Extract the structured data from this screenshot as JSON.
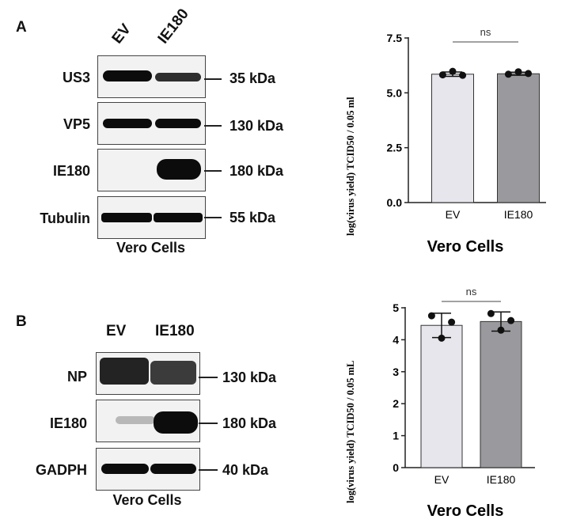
{
  "panel_a": {
    "letter": "A",
    "lanes": [
      "EV",
      "IE180"
    ],
    "blots": [
      {
        "protein": "US3",
        "size": "35 kDa"
      },
      {
        "protein": "VP5",
        "size": "130 kDa"
      },
      {
        "protein": "IE180",
        "size": "180 kDa"
      },
      {
        "protein": "Tubulin",
        "size": "55 kDa"
      }
    ],
    "caption": "Vero Cells"
  },
  "panel_b": {
    "letter": "B",
    "lanes": [
      "EV",
      "IE180"
    ],
    "blots": [
      {
        "protein": "NP",
        "size": "130 kDa"
      },
      {
        "protein": "IE180",
        "size": "180 kDa"
      },
      {
        "protein": "GADPH",
        "size": "40 kDa"
      }
    ],
    "caption": "Vero Cells"
  },
  "colors": {
    "ev_bar": "#e6e6ec",
    "ie180_bar": "#9a9a9e",
    "band": "#0c0c0c"
  },
  "chart_data": [
    {
      "type": "bar",
      "categories": [
        "EV",
        "IE180"
      ],
      "values": [
        5.85,
        5.87
      ],
      "points": [
        [
          5.82,
          5.98,
          5.8
        ],
        [
          5.85,
          5.96,
          5.88
        ]
      ],
      "error": [
        0.1,
        0.07
      ],
      "ylabel": "log(virus yield) TCID50 / 0.05 ml",
      "xlabel": "Vero Cells",
      "ylim": [
        0,
        7.5
      ],
      "yticks": [
        "0.0",
        "2.5",
        "5.0",
        "7.5"
      ],
      "significance": "ns"
    },
    {
      "type": "bar",
      "categories": [
        "EV",
        "IE180"
      ],
      "values": [
        4.45,
        4.57
      ],
      "points": [
        [
          4.75,
          4.05,
          4.55
        ],
        [
          4.82,
          4.3,
          4.6
        ]
      ],
      "error": [
        0.38,
        0.3
      ],
      "ylabel": "log(virus yield) TCID50 / 0.05 mL",
      "xlabel": "Vero Cells",
      "ylim": [
        0,
        5
      ],
      "yticks": [
        "0",
        "1",
        "2",
        "3",
        "4",
        "5"
      ],
      "significance": "ns"
    }
  ]
}
